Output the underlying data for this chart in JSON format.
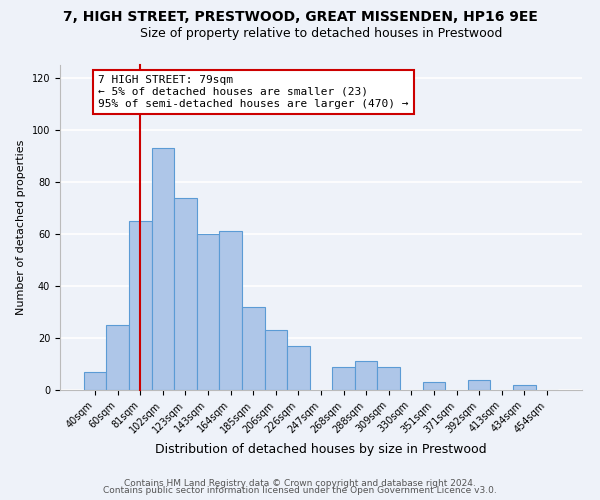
{
  "title": "7, HIGH STREET, PRESTWOOD, GREAT MISSENDEN, HP16 9EE",
  "subtitle": "Size of property relative to detached houses in Prestwood",
  "xlabel": "Distribution of detached houses by size in Prestwood",
  "ylabel": "Number of detached properties",
  "bar_labels": [
    "40sqm",
    "60sqm",
    "81sqm",
    "102sqm",
    "123sqm",
    "143sqm",
    "164sqm",
    "185sqm",
    "206sqm",
    "226sqm",
    "247sqm",
    "268sqm",
    "288sqm",
    "309sqm",
    "330sqm",
    "351sqm",
    "371sqm",
    "392sqm",
    "413sqm",
    "434sqm",
    "454sqm"
  ],
  "bar_heights": [
    7,
    25,
    65,
    93,
    74,
    60,
    61,
    32,
    23,
    17,
    0,
    9,
    11,
    9,
    0,
    3,
    0,
    4,
    0,
    2,
    0
  ],
  "bar_color": "#aec6e8",
  "bar_edge_color": "#5b9bd5",
  "vline_x_index": 2,
  "vline_color": "#cc0000",
  "annotation_line1": "7 HIGH STREET: 79sqm",
  "annotation_line2": "← 5% of detached houses are smaller (23)",
  "annotation_line3": "95% of semi-detached houses are larger (470) →",
  "annotation_box_color": "#ffffff",
  "annotation_box_edge_color": "#cc0000",
  "ylim": [
    0,
    125
  ],
  "yticks": [
    0,
    20,
    40,
    60,
    80,
    100,
    120
  ],
  "footer_line1": "Contains HM Land Registry data © Crown copyright and database right 2024.",
  "footer_line2": "Contains public sector information licensed under the Open Government Licence v3.0.",
  "background_color": "#eef2f9",
  "plot_bg_color": "#eef2f9",
  "grid_color": "#ffffff",
  "title_fontsize": 10,
  "subtitle_fontsize": 9,
  "xlabel_fontsize": 9,
  "ylabel_fontsize": 8,
  "tick_fontsize": 7,
  "annotation_fontsize": 8,
  "footer_fontsize": 6.5
}
